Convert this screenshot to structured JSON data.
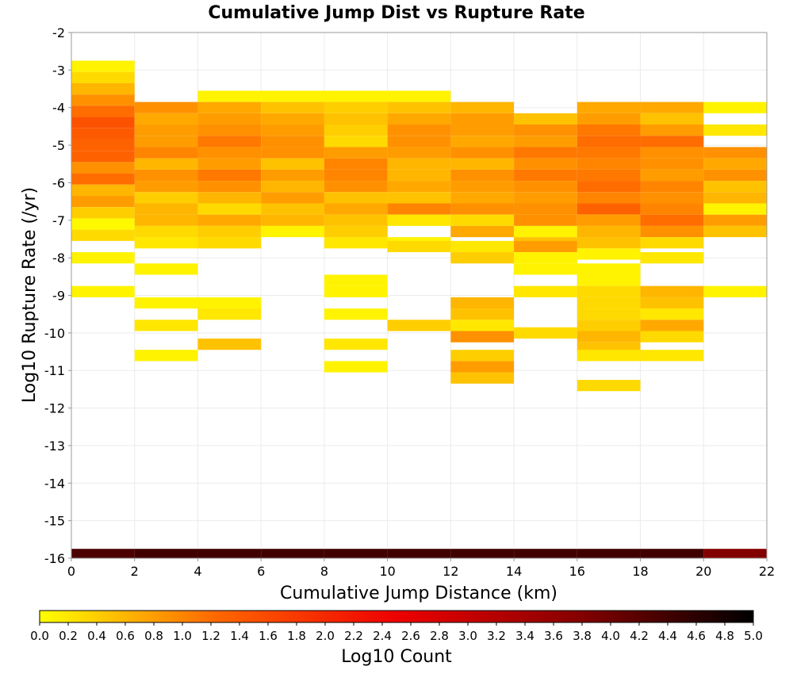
{
  "chart_data": {
    "type": "heatmap",
    "title": "Cumulative Jump Dist vs Rupture Rate",
    "xlabel": "Cumulative Jump Distance (km)",
    "ylabel": "Log10 Rupture Rate (/yr)",
    "xlim": [
      0,
      22
    ],
    "ylim": [
      -16,
      -2
    ],
    "x_ticks": [
      "0",
      "2",
      "4",
      "6",
      "8",
      "10",
      "12",
      "14",
      "16",
      "18",
      "20",
      "22"
    ],
    "y_ticks": [
      "-2",
      "-3",
      "-4",
      "-5",
      "-6",
      "-7",
      "-8",
      "-9",
      "-10",
      "-11",
      "-12",
      "-13",
      "-14",
      "-15",
      "-16"
    ],
    "x_bin_width": 2,
    "y_bin_height": 0.3,
    "grid": true,
    "colorbar": {
      "label": "Log10 Count",
      "range": [
        0,
        5
      ],
      "tick_labels": [
        "0.0",
        "0.2",
        "0.4",
        "0.6",
        "0.8",
        "1.0",
        "1.2",
        "1.4",
        "1.6",
        "1.8",
        "2.0",
        "2.2",
        "2.4",
        "2.6",
        "2.8",
        "3.0",
        "3.2",
        "3.4",
        "3.6",
        "3.8",
        "4.0",
        "4.2",
        "4.4",
        "4.6",
        "4.8",
        "5.0"
      ],
      "colors": [
        "#ffff00",
        "#ff6600",
        "#ee0000",
        "#880000",
        "#000000"
      ],
      "position": "bottom"
    },
    "columns": [
      {
        "x": 1,
        "cells": [
          [
            -2.9,
            0.1
          ],
          [
            -3.2,
            0.3
          ],
          [
            -3.5,
            0.6
          ],
          [
            -3.8,
            0.9
          ],
          [
            -4.1,
            1.2
          ],
          [
            -4.4,
            1.5
          ],
          [
            -4.7,
            1.4
          ],
          [
            -5.0,
            1.3
          ],
          [
            -5.3,
            1.3
          ],
          [
            -5.6,
            0.9
          ],
          [
            -5.9,
            1.2
          ],
          [
            -6.2,
            0.6
          ],
          [
            -6.5,
            0.8
          ],
          [
            -6.8,
            0.4
          ],
          [
            -7.1,
            0.05
          ],
          [
            -7.4,
            0.3
          ],
          [
            -8.0,
            0.1
          ],
          [
            -8.9,
            0.1
          ],
          [
            -15.9,
            4.3
          ]
        ]
      },
      {
        "x": 3,
        "cells": [
          [
            -4.0,
            0.9
          ],
          [
            -4.3,
            0.7
          ],
          [
            -4.6,
            0.8
          ],
          [
            -4.9,
            0.8
          ],
          [
            -5.2,
            1.0
          ],
          [
            -5.5,
            0.6
          ],
          [
            -5.8,
            0.9
          ],
          [
            -6.1,
            0.8
          ],
          [
            -6.4,
            0.4
          ],
          [
            -6.7,
            0.6
          ],
          [
            -7.0,
            0.6
          ],
          [
            -7.3,
            0.3
          ],
          [
            -7.6,
            0.2
          ],
          [
            -8.3,
            0.1
          ],
          [
            -9.2,
            0.1
          ],
          [
            -9.8,
            0.2
          ],
          [
            -10.6,
            0.1
          ],
          [
            -15.9,
            4.4
          ]
        ]
      },
      {
        "x": 5,
        "cells": [
          [
            -3.7,
            0.1
          ],
          [
            -4.0,
            0.7
          ],
          [
            -4.3,
            0.8
          ],
          [
            -4.6,
            0.9
          ],
          [
            -4.9,
            1.1
          ],
          [
            -5.2,
            0.9
          ],
          [
            -5.5,
            0.8
          ],
          [
            -5.8,
            1.1
          ],
          [
            -6.1,
            0.9
          ],
          [
            -6.4,
            0.6
          ],
          [
            -6.7,
            0.3
          ],
          [
            -7.0,
            0.7
          ],
          [
            -7.3,
            0.4
          ],
          [
            -7.6,
            0.3
          ],
          [
            -9.2,
            0.1
          ],
          [
            -9.5,
            0.2
          ],
          [
            -10.3,
            0.5
          ],
          [
            -15.9,
            4.4
          ]
        ]
      },
      {
        "x": 7,
        "cells": [
          [
            -3.7,
            0.1
          ],
          [
            -4.0,
            0.5
          ],
          [
            -4.3,
            0.7
          ],
          [
            -4.6,
            0.8
          ],
          [
            -4.9,
            0.9
          ],
          [
            -5.2,
            0.9
          ],
          [
            -5.5,
            0.5
          ],
          [
            -5.8,
            0.8
          ],
          [
            -6.1,
            0.6
          ],
          [
            -6.4,
            0.8
          ],
          [
            -6.7,
            0.5
          ],
          [
            -7.0,
            0.6
          ],
          [
            -7.3,
            0.1
          ],
          [
            -15.9,
            4.4
          ]
        ]
      },
      {
        "x": 9,
        "cells": [
          [
            -3.7,
            0.1
          ],
          [
            -4.0,
            0.4
          ],
          [
            -4.3,
            0.5
          ],
          [
            -4.6,
            0.4
          ],
          [
            -4.9,
            0.3
          ],
          [
            -5.2,
            0.8
          ],
          [
            -5.5,
            1.0
          ],
          [
            -5.8,
            1.0
          ],
          [
            -6.1,
            0.9
          ],
          [
            -6.4,
            0.5
          ],
          [
            -6.7,
            0.7
          ],
          [
            -7.0,
            0.5
          ],
          [
            -7.3,
            0.4
          ],
          [
            -7.6,
            0.2
          ],
          [
            -8.6,
            0.1
          ],
          [
            -8.9,
            0.1
          ],
          [
            -9.5,
            0.1
          ],
          [
            -10.3,
            0.2
          ],
          [
            -10.9,
            0.1
          ],
          [
            -15.9,
            4.4
          ]
        ]
      },
      {
        "x": 11,
        "cells": [
          [
            -3.7,
            0.1
          ],
          [
            -4.0,
            0.5
          ],
          [
            -4.3,
            0.7
          ],
          [
            -4.6,
            0.9
          ],
          [
            -4.9,
            0.9
          ],
          [
            -5.2,
            0.8
          ],
          [
            -5.5,
            0.6
          ],
          [
            -5.8,
            0.6
          ],
          [
            -6.1,
            0.7
          ],
          [
            -6.4,
            0.5
          ],
          [
            -6.7,
            1.0
          ],
          [
            -7.0,
            0.2
          ],
          [
            -7.6,
            0.1
          ],
          [
            -7.7,
            0.3
          ],
          [
            -9.8,
            0.4
          ],
          [
            -15.9,
            4.4
          ]
        ]
      },
      {
        "x": 13,
        "cells": [
          [
            -4.0,
            0.6
          ],
          [
            -4.3,
            0.8
          ],
          [
            -4.6,
            0.8
          ],
          [
            -4.9,
            0.7
          ],
          [
            -5.2,
            0.9
          ],
          [
            -5.5,
            0.6
          ],
          [
            -5.8,
            0.9
          ],
          [
            -6.1,
            0.8
          ],
          [
            -6.4,
            0.7
          ],
          [
            -6.7,
            0.9
          ],
          [
            -7.0,
            0.3
          ],
          [
            -7.3,
            0.7
          ],
          [
            -7.7,
            0.2
          ],
          [
            -8.0,
            0.4
          ],
          [
            -9.2,
            0.6
          ],
          [
            -9.5,
            0.5
          ],
          [
            -9.8,
            0.2
          ],
          [
            -10.1,
            0.9
          ],
          [
            -10.6,
            0.4
          ],
          [
            -10.9,
            0.8
          ],
          [
            -11.2,
            0.5
          ],
          [
            -15.9,
            4.4
          ]
        ]
      },
      {
        "x": 15,
        "cells": [
          [
            -4.3,
            0.5
          ],
          [
            -4.6,
            0.9
          ],
          [
            -4.9,
            0.8
          ],
          [
            -5.2,
            1.1
          ],
          [
            -5.5,
            0.9
          ],
          [
            -5.8,
            1.1
          ],
          [
            -6.1,
            0.9
          ],
          [
            -6.4,
            0.8
          ],
          [
            -6.7,
            0.9
          ],
          [
            -7.0,
            0.9
          ],
          [
            -7.3,
            0.1
          ],
          [
            -7.6,
            0.5
          ],
          [
            -7.7,
            0.8
          ],
          [
            -8.0,
            0.1
          ],
          [
            -8.3,
            0.1
          ],
          [
            -8.9,
            0.2
          ],
          [
            -10.0,
            0.3
          ],
          [
            -15.9,
            4.4
          ]
        ]
      },
      {
        "x": 17,
        "cells": [
          [
            -4.0,
            0.7
          ],
          [
            -4.3,
            0.8
          ],
          [
            -4.6,
            1.1
          ],
          [
            -4.9,
            1.2
          ],
          [
            -5.2,
            1.1
          ],
          [
            -5.5,
            1.0
          ],
          [
            -5.8,
            1.1
          ],
          [
            -6.1,
            1.2
          ],
          [
            -6.4,
            1.0
          ],
          [
            -6.7,
            1.3
          ],
          [
            -7.0,
            0.8
          ],
          [
            -7.3,
            0.6
          ],
          [
            -7.6,
            0.5
          ],
          [
            -7.9,
            0.1
          ],
          [
            -8.3,
            0.1
          ],
          [
            -8.6,
            0.1
          ],
          [
            -8.9,
            0.3
          ],
          [
            -9.2,
            0.3
          ],
          [
            -9.5,
            0.3
          ],
          [
            -9.8,
            0.4
          ],
          [
            -10.1,
            0.6
          ],
          [
            -10.4,
            0.5
          ],
          [
            -10.6,
            0.2
          ],
          [
            -11.4,
            0.3
          ],
          [
            -15.9,
            4.4
          ]
        ]
      },
      {
        "x": 19,
        "cells": [
          [
            -4.0,
            0.7
          ],
          [
            -4.3,
            0.5
          ],
          [
            -4.6,
            0.8
          ],
          [
            -4.9,
            1.2
          ],
          [
            -5.2,
            0.9
          ],
          [
            -5.5,
            0.9
          ],
          [
            -5.8,
            0.8
          ],
          [
            -6.1,
            1.0
          ],
          [
            -6.4,
            0.9
          ],
          [
            -6.7,
            1.0
          ],
          [
            -7.0,
            1.2
          ],
          [
            -7.3,
            0.9
          ],
          [
            -7.6,
            0.3
          ],
          [
            -8.0,
            0.2
          ],
          [
            -8.9,
            0.6
          ],
          [
            -9.2,
            0.5
          ],
          [
            -9.5,
            0.2
          ],
          [
            -9.8,
            0.7
          ],
          [
            -10.1,
            0.3
          ],
          [
            -10.6,
            0.2
          ],
          [
            -15.9,
            4.4
          ]
        ]
      },
      {
        "x": 21,
        "cells": [
          [
            -4.0,
            0.1
          ],
          [
            -4.6,
            0.2
          ],
          [
            -5.2,
            0.9
          ],
          [
            -5.5,
            0.7
          ],
          [
            -5.8,
            0.9
          ],
          [
            -6.1,
            0.5
          ],
          [
            -6.4,
            0.6
          ],
          [
            -6.7,
            0.1
          ],
          [
            -7.0,
            0.8
          ],
          [
            -7.3,
            0.5
          ],
          [
            -8.9,
            0.1
          ],
          [
            -15.9,
            3.8
          ]
        ]
      }
    ]
  }
}
